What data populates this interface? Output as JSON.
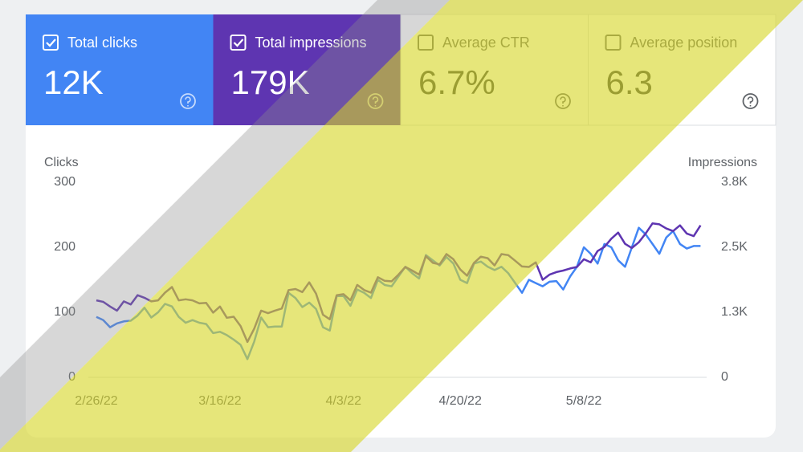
{
  "metrics": [
    {
      "label": "Total clicks",
      "value": "12K",
      "selected": true,
      "color": "#4285f4"
    },
    {
      "label": "Total impressions",
      "value": "179K",
      "selected": true,
      "color": "#5e35b1"
    },
    {
      "label": "Average CTR",
      "value": "6.7%",
      "selected": false,
      "color": "#ffffff"
    },
    {
      "label": "Average position",
      "value": "6.3",
      "selected": false,
      "color": "#ffffff"
    }
  ],
  "chart_data": {
    "type": "line",
    "y_label": "Clicks",
    "y2_label": "Impressions",
    "categories": [
      "2/26/22",
      null,
      null,
      null,
      null,
      null,
      null,
      null,
      null,
      null,
      null,
      null,
      null,
      null,
      null,
      null,
      null,
      null,
      "3/16/22",
      null,
      null,
      null,
      null,
      null,
      null,
      null,
      null,
      null,
      null,
      null,
      null,
      null,
      null,
      null,
      null,
      null,
      "4/3/22",
      null,
      null,
      null,
      null,
      null,
      null,
      null,
      null,
      null,
      null,
      null,
      null,
      null,
      null,
      null,
      null,
      "4/20/22",
      null,
      null,
      null,
      null,
      null,
      null,
      null,
      null,
      null,
      null,
      null,
      null,
      null,
      null,
      null,
      null,
      null,
      "5/8/22",
      null,
      null,
      null,
      null,
      null,
      null,
      null,
      null,
      null,
      null,
      null,
      null,
      null,
      null,
      null,
      null,
      null
    ],
    "series": [
      {
        "name": "Clicks",
        "color": "#4285f4",
        "values": [
          93,
          88,
          77,
          83,
          86,
          87,
          95,
          107,
          92,
          100,
          113,
          109,
          93,
          84,
          88,
          84,
          82,
          68,
          70,
          65,
          58,
          50,
          28,
          55,
          92,
          77,
          78,
          78,
          130,
          122,
          108,
          115,
          105,
          77,
          72,
          125,
          125,
          110,
          135,
          130,
          122,
          150,
          142,
          140,
          155,
          170,
          160,
          152,
          188,
          180,
          172,
          185,
          175,
          150,
          145,
          175,
          178,
          170,
          165,
          170,
          160,
          145,
          130,
          150,
          145,
          140,
          147,
          148,
          135,
          155,
          170,
          200,
          190,
          175,
          205,
          200,
          180,
          170,
          200,
          230,
          220,
          205,
          190,
          215,
          225,
          205,
          198,
          202,
          202
        ]
      },
      {
        "name": "Impressions",
        "color": "#5e35b1",
        "axis": "y2",
        "values": [
          1500,
          1470,
          1380,
          1300,
          1480,
          1420,
          1600,
          1550,
          1480,
          1500,
          1650,
          1760,
          1500,
          1520,
          1500,
          1440,
          1450,
          1260,
          1380,
          1160,
          1180,
          1000,
          690,
          950,
          1300,
          1250,
          1300,
          1340,
          1700,
          1720,
          1660,
          1850,
          1630,
          1220,
          1130,
          1600,
          1620,
          1500,
          1800,
          1700,
          1650,
          1950,
          1880,
          1870,
          2000,
          2150,
          2080,
          2000,
          2360,
          2230,
          2200,
          2400,
          2300,
          2100,
          1980,
          2230,
          2350,
          2320,
          2180,
          2400,
          2380,
          2270,
          2160,
          2150,
          2240,
          1900,
          2000,
          2050,
          2080,
          2120,
          2150,
          2300,
          2240,
          2460,
          2540,
          2700,
          2820,
          2600,
          2520,
          2630,
          2800,
          3000,
          2980,
          2900,
          2850,
          2960,
          2800,
          2750,
          2960
        ]
      }
    ],
    "ylim": [
      0,
      300
    ],
    "yticks": [
      0,
      100,
      200,
      300
    ],
    "y2lim": [
      0,
      3800
    ],
    "y2ticks": [
      0,
      {
        "value": 1266.7,
        "label": "1.3K"
      },
      {
        "value": 2533.3,
        "label": "2.5K"
      },
      {
        "value": 3800,
        "label": "3.8K"
      }
    ],
    "grid": false
  }
}
